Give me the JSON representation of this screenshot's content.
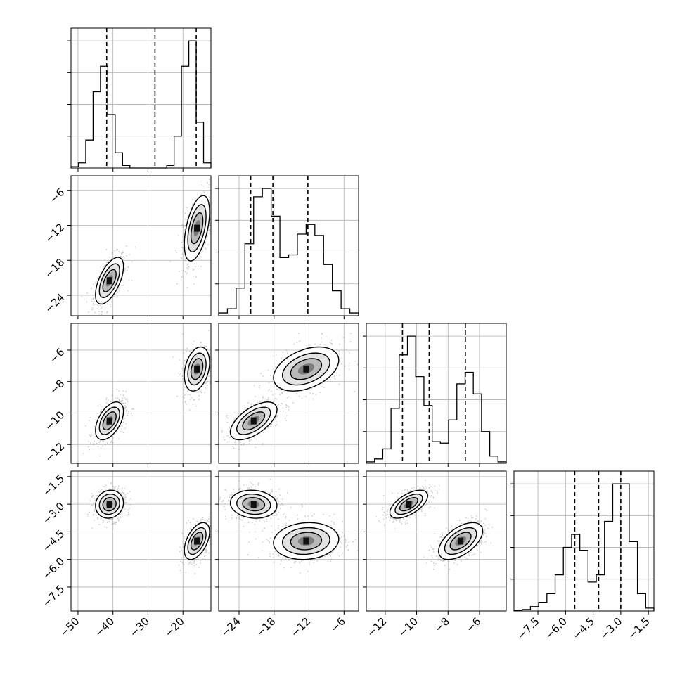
{
  "chart_data": {
    "type": "corner",
    "params": [
      {
        "id": "p0",
        "range": [
          -52,
          -12
        ],
        "ticks": [
          -50,
          -40,
          -30,
          -20
        ],
        "tick_labels": [
          "−50",
          "−40",
          "−30",
          "−20"
        ],
        "quantiles": [
          -41.8,
          -28.0,
          -16.2
        ],
        "hist": [
          0.01,
          0.04,
          0.22,
          0.6,
          0.8,
          0.42,
          0.12,
          0.02,
          0.0,
          0.0,
          0.0,
          0.0,
          0.0,
          0.02,
          0.25,
          0.8,
          1.0,
          0.36,
          0.04
        ]
      },
      {
        "id": "p1",
        "range": [
          -27.5,
          -3.5
        ],
        "ticks": [
          -24,
          -18,
          -12,
          -6
        ],
        "tick_labels": [
          "−24",
          "−18",
          "−12",
          "−6"
        ],
        "quantiles": [
          -22.0,
          -18.2,
          -12.2
        ],
        "hist": [
          0.02,
          0.05,
          0.2,
          0.52,
          0.86,
          0.92,
          0.72,
          0.42,
          0.44,
          0.59,
          0.66,
          0.58,
          0.37,
          0.18,
          0.05,
          0.02
        ]
      },
      {
        "id": "p2",
        "range": [
          -13.2,
          -4.3
        ],
        "ticks": [
          -12,
          -10,
          -8,
          -6
        ],
        "tick_labels": [
          "−12",
          "−10",
          "−8",
          "−6"
        ],
        "quantiles": [
          -10.9,
          -9.2,
          -6.9
        ],
        "hist": [
          0.01,
          0.03,
          0.1,
          0.38,
          0.75,
          0.88,
          0.6,
          0.4,
          0.15,
          0.14,
          0.3,
          0.55,
          0.63,
          0.48,
          0.22,
          0.05,
          0.01
        ]
      },
      {
        "id": "p3",
        "range": [
          -8.8,
          -1.2
        ],
        "ticks": [
          -7.5,
          -6.0,
          -4.5,
          -3.0,
          -1.5
        ],
        "tick_labels": [
          "−7.5",
          "−6.0",
          "−4.5",
          "−3.0",
          "−1.5"
        ],
        "quantiles": [
          -5.5,
          -4.2,
          -3.0
        ],
        "hist": [
          0.005,
          0.01,
          0.03,
          0.06,
          0.12,
          0.25,
          0.44,
          0.53,
          0.42,
          0.2,
          0.25,
          0.62,
          0.88,
          0.88,
          0.48,
          0.12,
          0.02
        ]
      }
    ],
    "modes": [
      {
        "mean": [
          -41,
          -21.5,
          -10.5,
          -3.0
        ],
        "sd": [
          2.0,
          2.0,
          0.6,
          0.38
        ],
        "weight": 0.5
      },
      {
        "mean": [
          -16,
          -12.5,
          -7.2,
          -5.0
        ],
        "sd": [
          1.8,
          2.8,
          0.7,
          0.5
        ],
        "weight": 0.5
      }
    ],
    "correlations": {
      "p0-p1": [
        0.6,
        0.5
      ],
      "p0-p2": [
        0.5,
        0.3
      ],
      "p0-p3": [
        0.1,
        0.5
      ],
      "p1-p2": [
        0.6,
        0.4
      ],
      "p1-p3": [
        -0.1,
        0.1
      ],
      "p2-p3": [
        0.6,
        0.55
      ]
    }
  }
}
